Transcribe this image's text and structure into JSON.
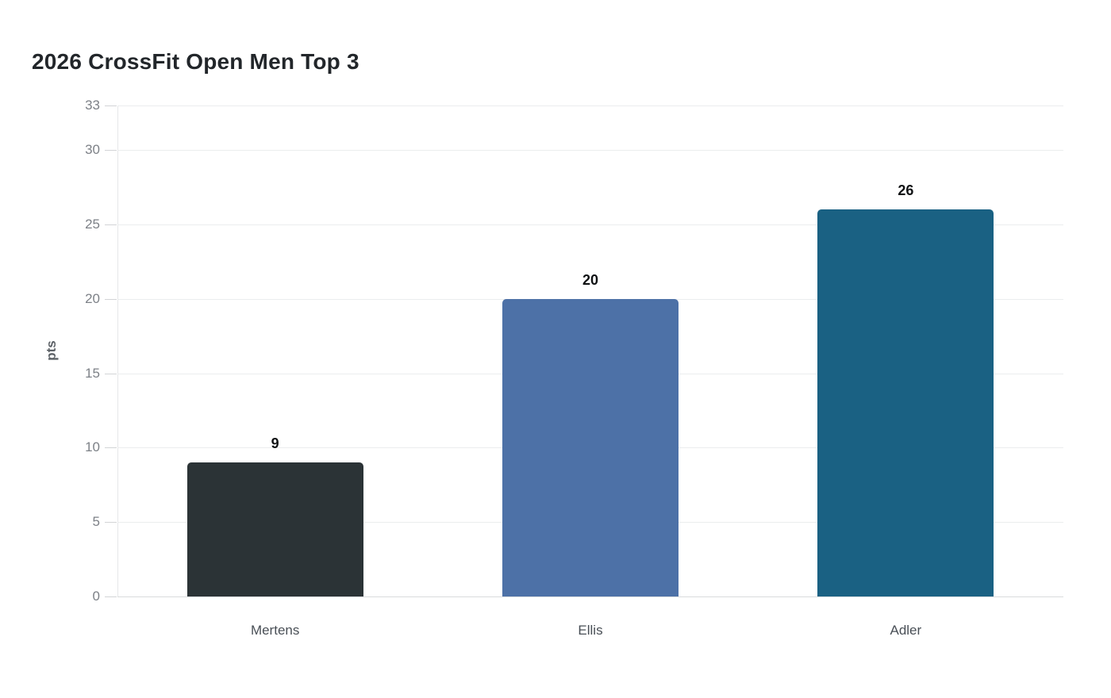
{
  "title": "2026 CrossFit Open Men Top 3",
  "chart_data": {
    "type": "bar",
    "title": "2026 CrossFit Open Men Top 3",
    "categories": [
      "Mertens",
      "Ellis",
      "Adler"
    ],
    "values": [
      9,
      20,
      26
    ],
    "value_labels": [
      "9",
      "20",
      "26"
    ],
    "bar_colors": [
      "#2b3336",
      "#4d71a7",
      "#1a6183"
    ],
    "xlabel": "",
    "ylabel": "pts",
    "ylim": [
      0,
      33
    ],
    "yticks": [
      0,
      5,
      10,
      15,
      20,
      25,
      30,
      33
    ],
    "grid": true,
    "legend_position": "none",
    "background_color": "#ffffff",
    "title_color": "#22262a",
    "tick_label_color": "#7d8187",
    "category_label_color": "#494f56",
    "value_label_color": "#101214"
  }
}
